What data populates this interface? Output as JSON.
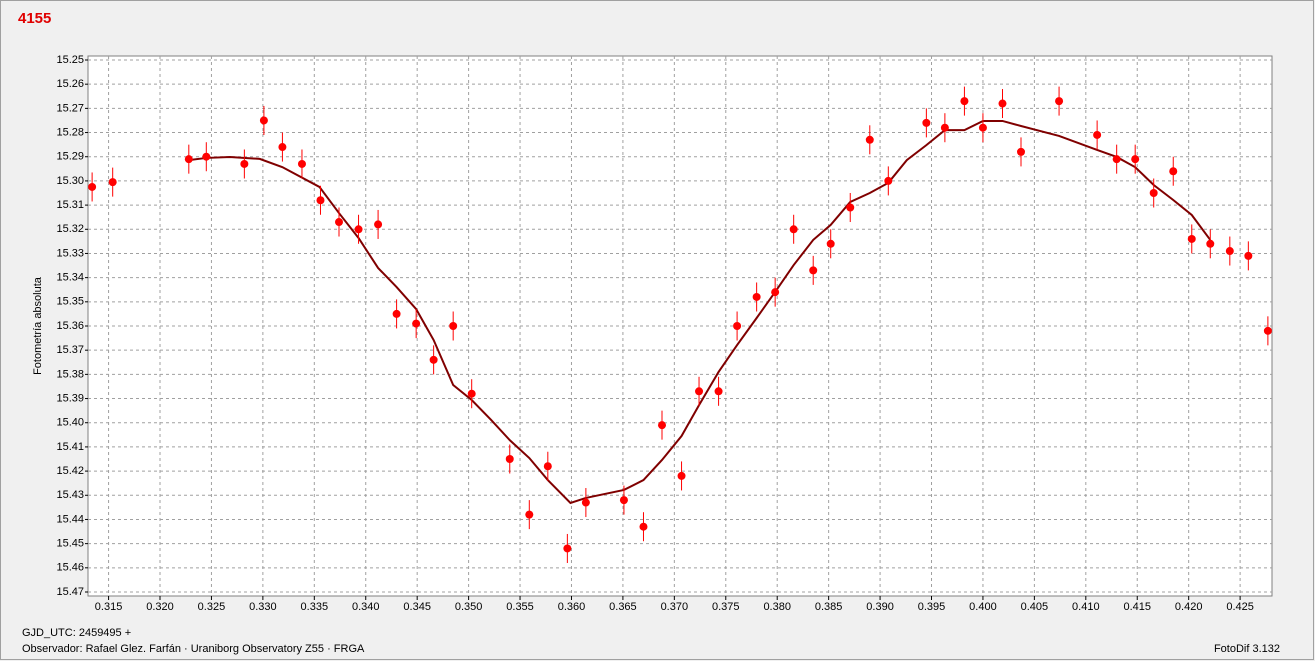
{
  "chart_data": {
    "type": "scatter",
    "title": "4155",
    "y_label": "Fotometría absoluta",
    "annotations": [
      "GJD_UTC: 2459495 +",
      "Observador: Rafael Glez. Farfán · Uraniborg Observatory Z55 · FRGA",
      "FotoDif 3.132"
    ],
    "xlim": [
      0.313,
      0.4281
    ],
    "ylim": [
      15.47,
      15.25
    ],
    "grid": true,
    "xticks": [
      0.315,
      {
        "value": 0.32,
        "label": "0.320"
      },
      0.325,
      {
        "value": 0.33,
        "label": "0.330"
      },
      0.335,
      {
        "value": 0.34,
        "label": "0.340"
      },
      0.345,
      {
        "value": 0.35,
        "label": "0.350"
      },
      0.355,
      {
        "value": 0.36,
        "label": "0.360"
      },
      0.365,
      {
        "value": 0.37,
        "label": "0.370"
      },
      0.375,
      {
        "value": 0.38,
        "label": "0.380"
      },
      0.385,
      {
        "value": 0.39,
        "label": "0.390"
      },
      0.395,
      {
        "value": 0.4,
        "label": "0.400"
      },
      0.405,
      {
        "value": 0.41,
        "label": "0.410"
      },
      0.415,
      {
        "value": 0.42,
        "label": "0.420"
      },
      0.425
    ],
    "yticks": [
      15.25,
      15.26,
      15.27,
      15.28,
      15.29,
      {
        "value": 15.3,
        "label": "15.30"
      },
      15.31,
      15.32,
      15.33,
      15.34,
      15.35,
      15.36,
      15.37,
      15.38,
      15.39,
      {
        "value": 15.4,
        "label": "15.40"
      },
      15.41,
      15.42,
      15.43,
      15.44,
      15.45,
      15.46,
      15.47
    ],
    "series": [
      {
        "style": "points",
        "color": "#ff0000",
        "error": 0.006,
        "x": [
          0.3134,
          0.3154,
          0.3228,
          0.3245,
          0.3282,
          0.3301,
          0.3319,
          0.3338,
          0.3356,
          0.3374,
          0.3393,
          0.3412,
          0.343,
          0.3449,
          0.3466,
          0.3485,
          0.3503,
          0.354,
          0.3559,
          0.3577,
          0.3596,
          0.3614,
          0.3651,
          0.367,
          0.3688,
          0.3707,
          0.3724,
          0.3743,
          0.3761,
          0.378,
          0.3798,
          0.3816,
          0.3835,
          0.3852,
          0.3871,
          0.389,
          0.3908,
          0.3945,
          0.3963,
          0.3982,
          0.4,
          0.4019,
          0.4037,
          0.4074,
          0.4111,
          0.413,
          0.4148,
          0.4166,
          0.4185,
          0.4203,
          0.4221,
          0.424,
          0.4258,
          0.4277
        ],
        "values": [
          15.3025,
          15.3005,
          15.291,
          15.29,
          15.293,
          15.275,
          15.286,
          15.293,
          15.308,
          15.317,
          15.32,
          15.318,
          15.355,
          15.359,
          15.374,
          15.36,
          15.388,
          15.415,
          15.438,
          15.418,
          15.452,
          15.433,
          15.432,
          15.443,
          15.401,
          15.422,
          15.387,
          15.387,
          15.36,
          15.348,
          15.346,
          15.32,
          15.337,
          15.326,
          15.311,
          15.283,
          15.3,
          15.276,
          15.278,
          15.267,
          15.278,
          15.268,
          15.288,
          15.267,
          15.281,
          15.291,
          15.291,
          15.305,
          15.296,
          15.324,
          15.326,
          15.329,
          15.331,
          15.362
        ]
      },
      {
        "style": "line",
        "color": "#800000",
        "x": [
          0.3228,
          0.3245,
          0.3268,
          0.3297,
          0.3319,
          0.3355,
          0.3374,
          0.3393,
          0.3412,
          0.343,
          0.3449,
          0.3466,
          0.3485,
          0.3503,
          0.3522,
          0.354,
          0.3559,
          0.3577,
          0.3599,
          0.3614,
          0.3651,
          0.367,
          0.3688,
          0.3707,
          0.3724,
          0.3743,
          0.3761,
          0.378,
          0.3798,
          0.3816,
          0.3835,
          0.3852,
          0.3871,
          0.389,
          0.3908,
          0.3926,
          0.3945,
          0.3963,
          0.3982,
          0.4,
          0.4019,
          0.4037,
          0.4074,
          0.4111,
          0.413,
          0.4148,
          0.4166,
          0.4185,
          0.4203,
          0.4221
        ],
        "values": [
          15.2914,
          15.2905,
          15.2901,
          15.2909,
          15.2943,
          15.3025,
          15.3133,
          15.3236,
          15.336,
          15.3439,
          15.353,
          15.3658,
          15.3844,
          15.3906,
          15.3989,
          15.4072,
          15.4146,
          15.4237,
          15.4332,
          15.4311,
          15.4278,
          15.4237,
          15.4154,
          15.4055,
          15.3927,
          15.379,
          15.3679,
          15.3567,
          15.3459,
          15.3348,
          15.3244,
          15.3182,
          15.3087,
          15.305,
          15.3008,
          15.2914,
          15.2852,
          15.279,
          15.279,
          15.2752,
          15.2752,
          15.2773,
          15.2814,
          15.2872,
          15.2901,
          15.2943,
          15.3017,
          15.3079,
          15.3141,
          15.3244
        ]
      }
    ]
  }
}
